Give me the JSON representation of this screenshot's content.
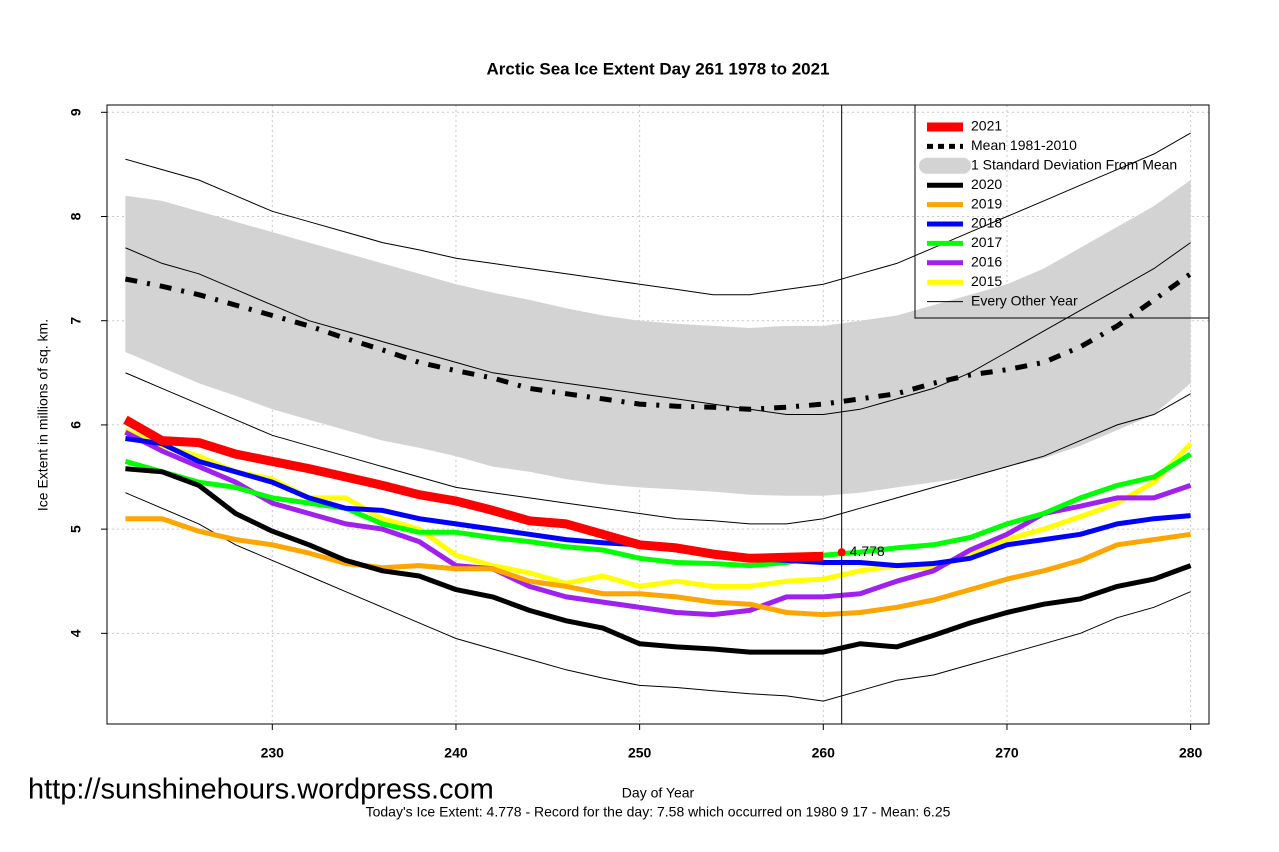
{
  "chart_data": {
    "type": "line",
    "title": "Arctic Sea Ice Extent Day 261 1978 to 2021",
    "x_label": "Day of Year",
    "y_label": "Ice Extent in millions of sq. km.",
    "footer": "Today's Ice Extent: 4.778  - Record for the day: 7.58 which occurred on 1980 9 17  - Mean: 6.25",
    "watermark": "http://sunshinehours.wordpress.com",
    "current_day": 261,
    "current_value": 4.778,
    "current_color": "#ff0000",
    "xlim": [
      221,
      281
    ],
    "ylim": [
      3.13,
      9.07
    ],
    "xticks": [
      230,
      240,
      250,
      260,
      270,
      280
    ],
    "yticks": [
      4,
      5,
      6,
      7,
      8,
      9
    ],
    "grid": true,
    "legend": "top-right",
    "x": [
      222,
      224,
      226,
      228,
      230,
      232,
      234,
      236,
      238,
      240,
      242,
      244,
      246,
      248,
      250,
      252,
      254,
      256,
      258,
      260,
      262,
      264,
      266,
      268,
      270,
      272,
      274,
      276,
      278,
      280
    ],
    "series": [
      {
        "name": "2021",
        "color": "#ff0000",
        "width": 9,
        "values": [
          6.05,
          5.85,
          5.83,
          5.72,
          5.65,
          5.58,
          5.5,
          5.42,
          5.33,
          5.27,
          5.18,
          5.08,
          5.05,
          4.95,
          4.85,
          4.82,
          4.76,
          4.72,
          4.73,
          4.74,
          null,
          null,
          null,
          null,
          null,
          null,
          null,
          null,
          null,
          null
        ]
      },
      {
        "name": "Mean 1981-2010",
        "color": "#000000",
        "width": 5,
        "dash": "dotdash",
        "values": [
          7.4,
          7.33,
          7.25,
          7.15,
          7.05,
          6.95,
          6.83,
          6.72,
          6.6,
          6.52,
          6.45,
          6.35,
          6.3,
          6.25,
          6.2,
          6.18,
          6.17,
          6.15,
          6.17,
          6.2,
          6.25,
          6.3,
          6.4,
          6.48,
          6.53,
          6.6,
          6.75,
          6.95,
          7.2,
          7.45
        ]
      },
      {
        "name": "1 Standard Deviation From Mean",
        "color": "#d3d3d3",
        "kind": "band",
        "lower": [
          6.7,
          6.55,
          6.4,
          6.28,
          6.15,
          6.05,
          5.95,
          5.85,
          5.78,
          5.7,
          5.6,
          5.55,
          5.48,
          5.43,
          5.4,
          5.38,
          5.36,
          5.33,
          5.32,
          5.32,
          5.35,
          5.4,
          5.45,
          5.5,
          5.6,
          5.68,
          5.8,
          5.95,
          6.1,
          6.4
        ],
        "upper": [
          8.2,
          8.15,
          8.05,
          7.95,
          7.85,
          7.75,
          7.65,
          7.55,
          7.45,
          7.35,
          7.27,
          7.2,
          7.12,
          7.05,
          7.0,
          6.97,
          6.95,
          6.93,
          6.95,
          6.95,
          7.0,
          7.05,
          7.15,
          7.25,
          7.35,
          7.5,
          7.7,
          7.9,
          8.1,
          8.35
        ]
      },
      {
        "name": "2020",
        "color": "#000000",
        "width": 5,
        "values": [
          5.58,
          5.55,
          5.42,
          5.15,
          4.98,
          4.85,
          4.7,
          4.6,
          4.55,
          4.42,
          4.35,
          4.22,
          4.12,
          4.05,
          3.9,
          3.87,
          3.85,
          3.82,
          3.82,
          3.82,
          3.9,
          3.87,
          3.98,
          4.1,
          4.2,
          4.28,
          4.33,
          4.45,
          4.52,
          4.65
        ]
      },
      {
        "name": "2019",
        "color": "#ffa500",
        "width": 5,
        "values": [
          5.1,
          5.1,
          4.98,
          4.9,
          4.85,
          4.77,
          4.67,
          4.63,
          4.65,
          4.62,
          4.62,
          4.5,
          4.45,
          4.38,
          4.38,
          4.35,
          4.3,
          4.28,
          4.2,
          4.18,
          4.2,
          4.25,
          4.32,
          4.42,
          4.52,
          4.6,
          4.7,
          4.85,
          4.9,
          4.95
        ]
      },
      {
        "name": "2018",
        "color": "#0000ff",
        "width": 5,
        "values": [
          5.87,
          5.82,
          5.65,
          5.55,
          5.45,
          5.3,
          5.2,
          5.18,
          5.1,
          5.05,
          5.0,
          4.95,
          4.9,
          4.87,
          4.85,
          4.8,
          4.75,
          4.72,
          4.7,
          4.68,
          4.68,
          4.65,
          4.67,
          4.72,
          4.85,
          4.9,
          4.95,
          5.05,
          5.1,
          5.13
        ]
      },
      {
        "name": "2017",
        "color": "#00ff00",
        "width": 5,
        "values": [
          5.65,
          5.55,
          5.45,
          5.4,
          5.3,
          5.25,
          5.2,
          5.05,
          4.97,
          4.97,
          4.92,
          4.88,
          4.83,
          4.8,
          4.72,
          4.68,
          4.67,
          4.65,
          4.68,
          4.75,
          4.78,
          4.82,
          4.85,
          4.92,
          5.05,
          5.15,
          5.3,
          5.42,
          5.5,
          5.72
        ]
      },
      {
        "name": "2016",
        "color": "#a020f0",
        "width": 5,
        "values": [
          5.93,
          5.75,
          5.6,
          5.45,
          5.25,
          5.15,
          5.05,
          5.0,
          4.88,
          4.65,
          4.62,
          4.45,
          4.35,
          4.3,
          4.25,
          4.2,
          4.18,
          4.22,
          4.35,
          4.35,
          4.38,
          4.5,
          4.6,
          4.8,
          4.95,
          5.15,
          5.22,
          5.3,
          5.3,
          5.42
        ]
      },
      {
        "name": "2015",
        "color": "#ffff00",
        "width": 5,
        "values": [
          5.95,
          5.8,
          5.7,
          5.55,
          5.48,
          5.3,
          5.3,
          5.1,
          5.0,
          4.75,
          4.65,
          4.58,
          4.48,
          4.55,
          4.45,
          4.5,
          4.45,
          4.45,
          4.5,
          4.52,
          4.6,
          4.65,
          4.62,
          4.75,
          4.9,
          5.0,
          5.12,
          5.25,
          5.45,
          5.82
        ]
      },
      {
        "name": "Every Other Year",
        "color": "#000000",
        "width": 1,
        "kind": "multi",
        "lines": [
          [
            8.55,
            8.45,
            8.35,
            8.2,
            8.05,
            7.95,
            7.85,
            7.75,
            7.68,
            7.6,
            7.55,
            7.5,
            7.45,
            7.4,
            7.35,
            7.3,
            7.25,
            7.25,
            7.3,
            7.35,
            7.45,
            7.55,
            7.7,
            7.85,
            8.0,
            8.15,
            8.3,
            8.45,
            8.6,
            8.8
          ],
          [
            7.7,
            7.55,
            7.45,
            7.3,
            7.15,
            7.0,
            6.9,
            6.8,
            6.7,
            6.6,
            6.5,
            6.45,
            6.4,
            6.35,
            6.3,
            6.25,
            6.2,
            6.15,
            6.1,
            6.1,
            6.15,
            6.25,
            6.35,
            6.5,
            6.7,
            6.9,
            7.1,
            7.3,
            7.5,
            7.75
          ],
          [
            6.5,
            6.35,
            6.2,
            6.05,
            5.9,
            5.8,
            5.7,
            5.6,
            5.5,
            5.4,
            5.35,
            5.3,
            5.25,
            5.2,
            5.15,
            5.1,
            5.08,
            5.05,
            5.05,
            5.1,
            5.2,
            5.3,
            5.4,
            5.5,
            5.6,
            5.7,
            5.85,
            6.0,
            6.1,
            6.3
          ],
          [
            5.35,
            5.2,
            5.05,
            4.85,
            4.7,
            4.55,
            4.4,
            4.25,
            4.1,
            3.95,
            3.85,
            3.75,
            3.65,
            3.57,
            3.5,
            3.48,
            3.45,
            3.42,
            3.4,
            3.35,
            3.45,
            3.55,
            3.6,
            3.7,
            3.8,
            3.9,
            4.0,
            4.15,
            4.25,
            4.4
          ]
        ]
      }
    ]
  }
}
